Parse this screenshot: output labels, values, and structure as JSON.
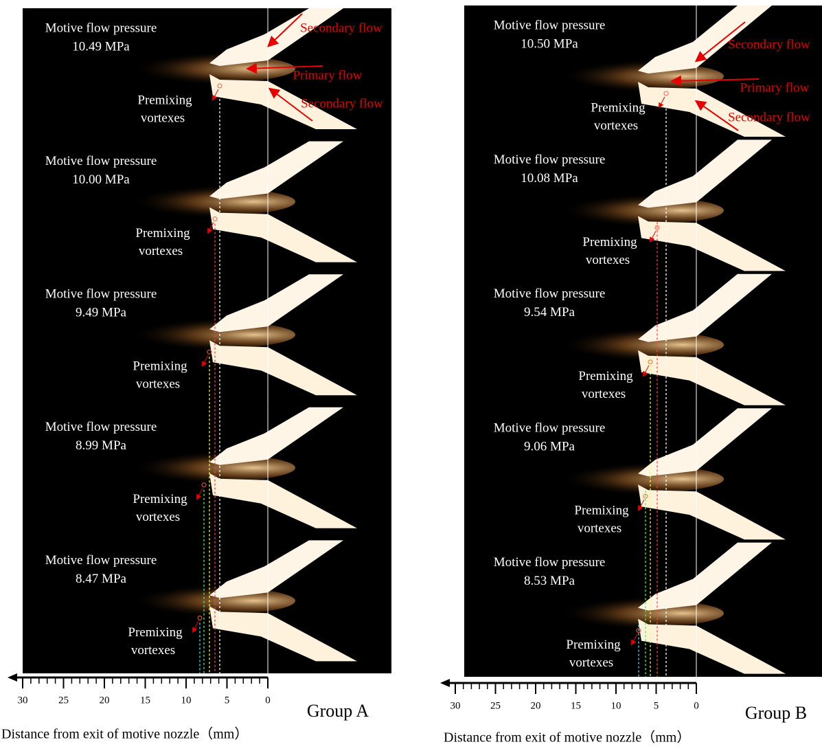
{
  "panels": [
    {
      "group": "Group A",
      "axis_title": "Distance from exit of motive nozzle（mm）",
      "ticks": [
        30,
        25,
        20,
        15,
        10,
        5,
        0
      ],
      "flow_labels": [
        "Secondary flow",
        "Primary flow",
        "Secondary flow"
      ],
      "frames": [
        {
          "pressure_label": "Motive flow pressure",
          "pressure": "10.49 MPa",
          "vortex_label": [
            "Premixing",
            "vortexes"
          ]
        },
        {
          "pressure_label": "Motive flow pressure",
          "pressure": "10.00 MPa",
          "vortex_label": [
            "Premixing",
            "vortexes"
          ]
        },
        {
          "pressure_label": "Motive flow pressure",
          "pressure": "9.49 MPa",
          "vortex_label": [
            "Premixing",
            "vortexes"
          ]
        },
        {
          "pressure_label": "Motive flow pressure",
          "pressure": "8.99 MPa",
          "vortex_label": [
            "Premixing",
            "vortexes"
          ]
        },
        {
          "pressure_label": "Motive flow pressure",
          "pressure": "8.47 MPa",
          "vortex_label": [
            "Premixing",
            "vortexes"
          ]
        }
      ]
    },
    {
      "group": "Group B",
      "axis_title": "Distance from exit of motive nozzle（mm）",
      "ticks": [
        30,
        25,
        20,
        15,
        10,
        5,
        0
      ],
      "flow_labels": [
        "Secondary flow",
        "Primary flow",
        "Secondary flow"
      ],
      "frames": [
        {
          "pressure_label": "Motive flow pressure",
          "pressure": "10.50 MPa",
          "vortex_label": [
            "Premixing",
            "vortexes"
          ]
        },
        {
          "pressure_label": "Motive flow pressure",
          "pressure": "10.08 MPa",
          "vortex_label": [
            "Premixing",
            "vortexes"
          ]
        },
        {
          "pressure_label": "Motive flow pressure",
          "pressure": "9.54 MPa",
          "vortex_label": [
            "Premixing",
            "vortexes"
          ]
        },
        {
          "pressure_label": "Motive flow pressure",
          "pressure": "9.06 MPa",
          "vortex_label": [
            "Premixing",
            "vortexes"
          ]
        },
        {
          "pressure_label": "Motive flow pressure",
          "pressure": "8.53 MPa",
          "vortex_label": [
            "Premixing",
            "vortexes"
          ]
        }
      ]
    }
  ]
}
